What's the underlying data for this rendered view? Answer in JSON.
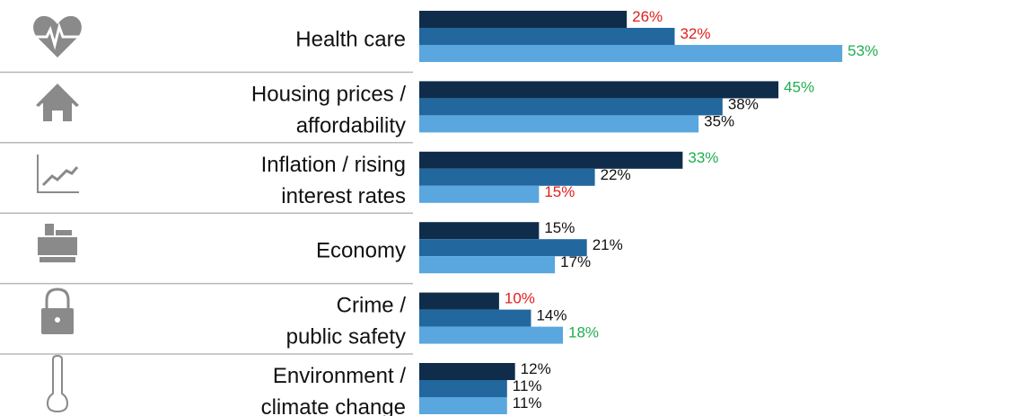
{
  "chart_data": {
    "type": "bar",
    "orientation": "horizontal",
    "categories": [
      [
        "Health care"
      ],
      [
        "Housing prices /",
        "affordability"
      ],
      [
        "Inflation / rising",
        "interest rates"
      ],
      [
        "Economy"
      ],
      [
        "Crime /",
        "public safety"
      ],
      [
        "Environment /",
        "climate change"
      ]
    ],
    "series": [
      {
        "color": "#0f2d4a",
        "values": [
          26,
          45,
          33,
          15,
          10,
          12
        ],
        "value_labels": [
          "26%",
          "45%",
          "33%",
          "15%",
          "10%",
          "12%"
        ],
        "value_label_colors": [
          "#e0201b",
          "#1fae4f",
          "#1fae4f",
          "#111111",
          "#e0201b",
          "#111111"
        ]
      },
      {
        "color": "#22679e",
        "values": [
          32,
          38,
          22,
          21,
          14,
          11
        ],
        "value_labels": [
          "32%",
          "38%",
          "22%",
          "21%",
          "14%",
          "11%"
        ],
        "value_label_colors": [
          "#e0201b",
          "#111111",
          "#111111",
          "#111111",
          "#111111",
          "#111111"
        ]
      },
      {
        "color": "#5aa6df",
        "values": [
          53,
          35,
          15,
          17,
          18,
          11
        ],
        "value_labels": [
          "53%",
          "35%",
          "15%",
          "17%",
          "18%",
          "11%"
        ],
        "value_label_colors": [
          "#1fae4f",
          "#111111",
          "#e0201b",
          "#111111",
          "#1fae4f",
          "#111111"
        ]
      }
    ]
  }
}
